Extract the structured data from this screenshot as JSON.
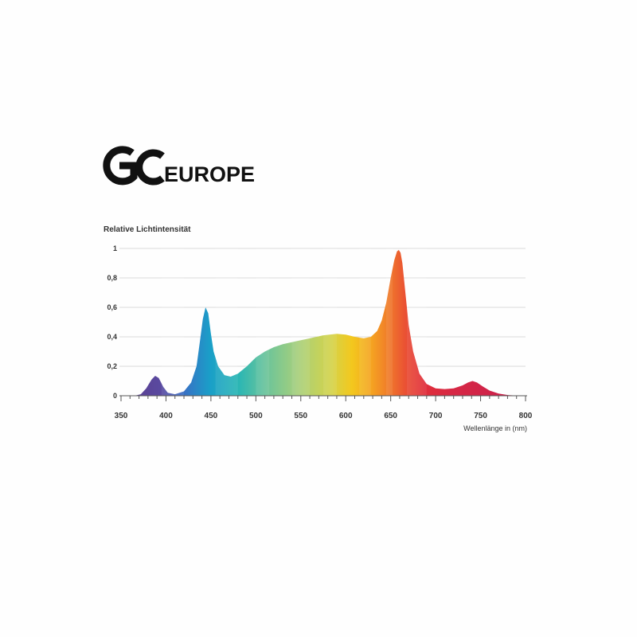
{
  "brand": {
    "logo_text": "GC EUROPE"
  },
  "chart_data": {
    "type": "area",
    "title": "",
    "ylabel": "Relative Lichtintensität",
    "xlabel": "Wellenlänge in (nm)",
    "xlim": [
      350,
      800
    ],
    "ylim": [
      0,
      1
    ],
    "x_ticks": [
      350,
      400,
      450,
      500,
      550,
      600,
      650,
      700,
      750,
      800
    ],
    "y_ticks": [
      0,
      0.2,
      0.4,
      0.6,
      0.8,
      1
    ],
    "y_tick_labels": [
      "0",
      "0,2",
      "0,4",
      "0,6",
      "0,8",
      "1"
    ],
    "grid": "horizontal",
    "fill": "rainbow spectrum",
    "x": [
      365,
      372,
      378,
      384,
      388,
      392,
      397,
      402,
      410,
      420,
      428,
      434,
      438,
      441,
      444,
      447,
      450,
      453,
      458,
      465,
      472,
      480,
      490,
      500,
      510,
      520,
      530,
      545,
      560,
      575,
      590,
      600,
      610,
      620,
      628,
      635,
      640,
      645,
      650,
      654,
      657,
      659,
      661,
      663,
      666,
      670,
      675,
      682,
      690,
      700,
      710,
      720,
      730,
      736,
      741,
      746,
      752,
      760,
      770,
      780,
      790,
      797
    ],
    "y": [
      0.0,
      0.01,
      0.05,
      0.11,
      0.135,
      0.12,
      0.06,
      0.02,
      0.01,
      0.03,
      0.09,
      0.2,
      0.38,
      0.52,
      0.6,
      0.56,
      0.42,
      0.3,
      0.2,
      0.14,
      0.13,
      0.15,
      0.2,
      0.26,
      0.3,
      0.33,
      0.35,
      0.37,
      0.39,
      0.41,
      0.42,
      0.415,
      0.4,
      0.39,
      0.4,
      0.44,
      0.51,
      0.63,
      0.8,
      0.92,
      0.98,
      0.99,
      0.97,
      0.9,
      0.72,
      0.48,
      0.3,
      0.15,
      0.08,
      0.05,
      0.045,
      0.05,
      0.07,
      0.09,
      0.1,
      0.09,
      0.065,
      0.035,
      0.015,
      0.005,
      0.001,
      0.0
    ]
  }
}
